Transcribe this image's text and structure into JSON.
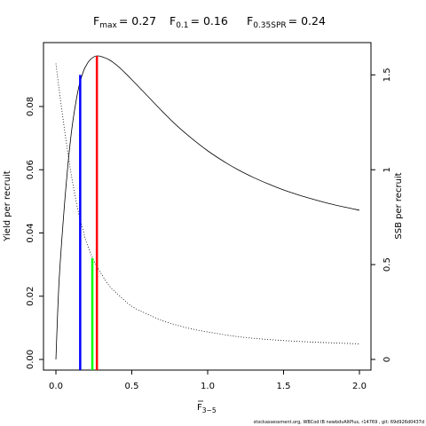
{
  "chart_data": {
    "type": "line",
    "title_parts": [
      {
        "main": "F",
        "sub": "max",
        "value": "= 0.27"
      },
      {
        "main": "F",
        "sub": "0.1",
        "value": "= 0.16"
      },
      {
        "main": "F",
        "sub": "0.35SPR",
        "value": "= 0.24"
      }
    ],
    "xlabel_main": "F",
    "xlabel_sub": "3−5",
    "ylabel_left": "Yield per recruit",
    "ylabel_right": "SSB per recruit",
    "xlim": [
      0,
      2
    ],
    "ylim_left": [
      0,
      0.096
    ],
    "ylim_right": [
      0,
      1.6
    ],
    "x_ticks": [
      {
        "value": 0,
        "label": "0.0"
      },
      {
        "value": 0.5,
        "label": "0.5"
      },
      {
        "value": 1,
        "label": "1.0"
      },
      {
        "value": 1.5,
        "label": "1.5"
      },
      {
        "value": 2,
        "label": "2.0"
      }
    ],
    "y_left_ticks": [
      {
        "value": 0,
        "label": "0.00"
      },
      {
        "value": 0.02,
        "label": "0.02"
      },
      {
        "value": 0.04,
        "label": "0.04"
      },
      {
        "value": 0.06,
        "label": "0.06"
      },
      {
        "value": 0.08,
        "label": "0.08"
      }
    ],
    "y_right_ticks": [
      {
        "value": 0,
        "label": "0"
      },
      {
        "value": 0.5,
        "label": "0.5"
      },
      {
        "value": 1,
        "label": "1"
      },
      {
        "value": 1.5,
        "label": "1.5"
      }
    ],
    "series": [
      {
        "axis": "left",
        "line_style": "solid",
        "color": "#000000",
        "x": [
          0,
          0.02,
          0.05,
          0.08,
          0.1,
          0.12,
          0.15,
          0.18,
          0.2,
          0.22,
          0.25,
          0.27,
          0.3,
          0.35,
          0.4,
          0.45,
          0.5,
          0.6,
          0.7,
          0.8,
          0.9,
          1.0,
          1.1,
          1.2,
          1.3,
          1.4,
          1.5,
          1.6,
          1.7,
          1.8,
          1.9,
          2.0
        ],
        "y": [
          0,
          0.024,
          0.045,
          0.062,
          0.071,
          0.078,
          0.086,
          0.091,
          0.093,
          0.0945,
          0.0957,
          0.096,
          0.0958,
          0.0948,
          0.0931,
          0.0909,
          0.0885,
          0.0835,
          0.0785,
          0.0738,
          0.0697,
          0.066,
          0.0628,
          0.06,
          0.0576,
          0.0555,
          0.0536,
          0.052,
          0.0506,
          0.0493,
          0.0482,
          0.0472
        ]
      },
      {
        "axis": "right",
        "line_style": "dotted",
        "color": "#000000",
        "x": [
          0,
          0.02,
          0.05,
          0.08,
          0.1,
          0.12,
          0.15,
          0.18,
          0.2,
          0.25,
          0.3,
          0.35,
          0.4,
          0.5,
          0.6,
          0.7,
          0.8,
          0.9,
          1.0,
          1.2,
          1.4,
          1.6,
          1.8,
          2.0
        ],
        "y": [
          1.56,
          1.43,
          1.25,
          1.08,
          0.98,
          0.89,
          0.77,
          0.68,
          0.62,
          0.52,
          0.45,
          0.39,
          0.35,
          0.28,
          0.24,
          0.205,
          0.18,
          0.16,
          0.145,
          0.12,
          0.105,
          0.095,
          0.088,
          0.082
        ]
      }
    ],
    "reference_lines": [
      {
        "name": "F0.1",
        "x": 0.16,
        "y_top": 0.09,
        "color": "#0000ff"
      },
      {
        "name": "Fmax",
        "x": 0.27,
        "y_top": 0.096,
        "color": "#ff0000"
      },
      {
        "name": "F0.35SPR",
        "x": 0.24,
        "y_top": 0.032,
        "color": "#00ff00"
      }
    ],
    "footer": "stockassessment.org, WBCod IB newbdvAltPlus, r14769 , git: 69d926d0437d"
  }
}
